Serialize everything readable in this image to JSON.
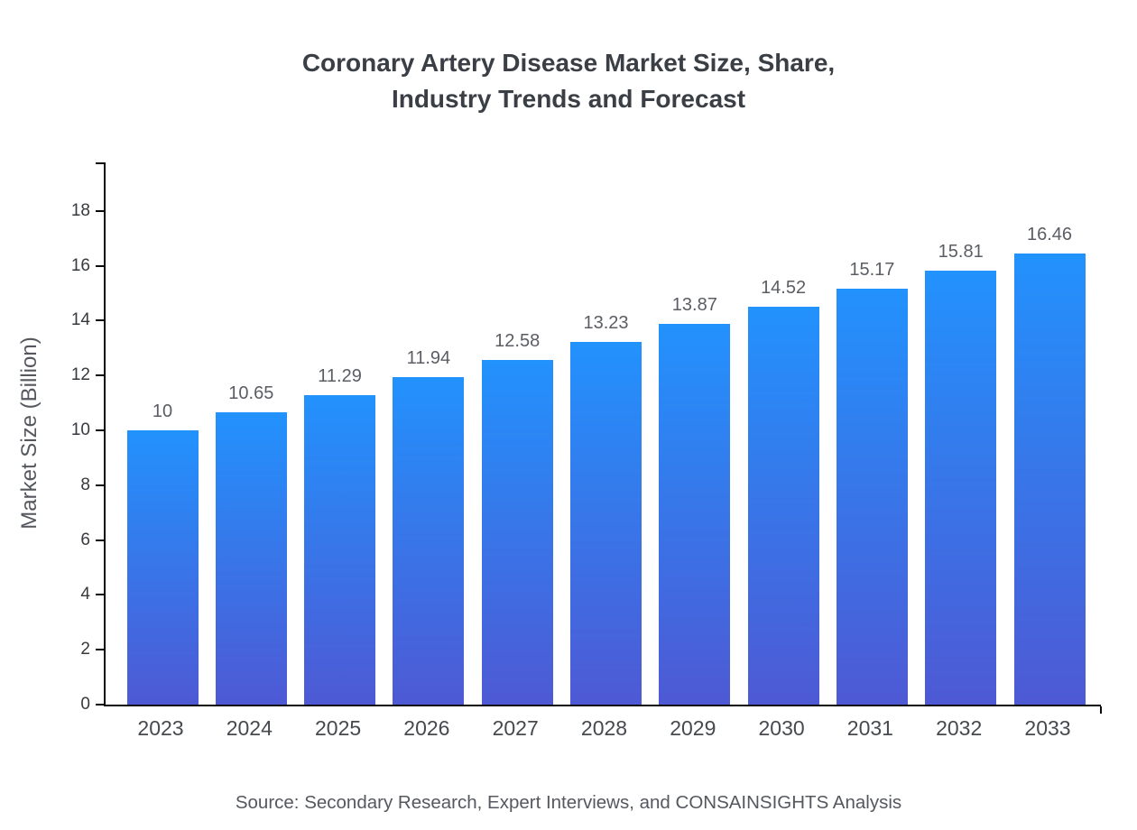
{
  "title": {
    "line1": "Coronary Artery Disease Market Size, Share,",
    "line2": "Industry Trends and Forecast"
  },
  "source": "Source: Secondary Research, Expert Interviews, and CONSAINSIGHTS Analysis",
  "chart_data": {
    "type": "bar",
    "title": "Coronary Artery Disease Market Size, Share, Industry Trends and Forecast",
    "categories": [
      "2023",
      "2024",
      "2025",
      "2026",
      "2027",
      "2028",
      "2029",
      "2030",
      "2031",
      "2032",
      "2033"
    ],
    "values": [
      10,
      10.65,
      11.29,
      11.94,
      12.58,
      13.23,
      13.87,
      14.52,
      15.17,
      15.81,
      16.46
    ],
    "value_labels": [
      "10",
      "10.65",
      "11.29",
      "11.94",
      "12.58",
      "13.23",
      "13.87",
      "14.52",
      "15.17",
      "15.81",
      "16.46"
    ],
    "xlabel": "",
    "ylabel": "Market Size (Billion)",
    "ylim": [
      0,
      19.77
    ],
    "yticks": [
      0,
      2,
      4,
      6,
      8,
      10,
      12,
      14,
      16,
      18
    ],
    "grid": false,
    "legend": "none",
    "bar_gradient_top": "#2292fd",
    "bar_gradient_bottom": "#4e59d4",
    "background": "#ffffff"
  }
}
